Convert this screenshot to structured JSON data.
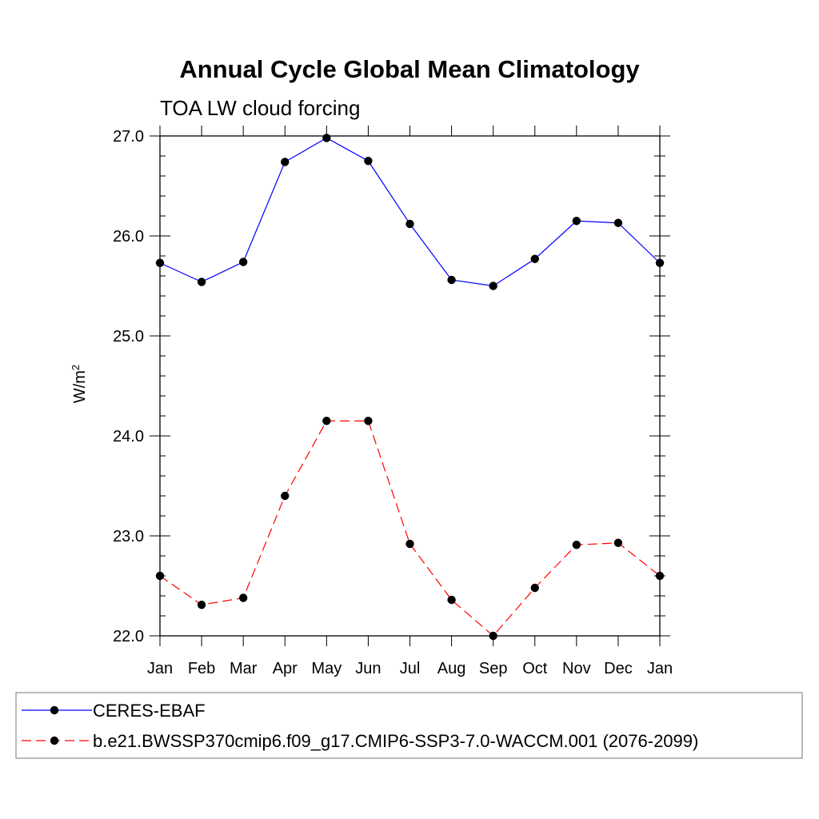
{
  "chart_data": {
    "type": "line",
    "title": "Annual Cycle Global Mean Climatology",
    "subtitle": "TOA LW cloud forcing",
    "ylabel": "W/m",
    "ylabel_superscript": "2",
    "xlabel": "",
    "categories": [
      "Jan",
      "Feb",
      "Mar",
      "Apr",
      "May",
      "Jun",
      "Jul",
      "Aug",
      "Sep",
      "Oct",
      "Nov",
      "Dec",
      "Jan"
    ],
    "ylim": [
      22.0,
      27.0
    ],
    "yticks": [
      22.0,
      23.0,
      24.0,
      25.0,
      26.0,
      27.0
    ],
    "ytick_labels": [
      "22.0",
      "23.0",
      "24.0",
      "25.0",
      "26.0",
      "27.0"
    ],
    "series": [
      {
        "name": "CERES-EBAF",
        "color": "#0000ff",
        "dash": "solid",
        "values": [
          25.73,
          25.54,
          25.74,
          26.74,
          26.98,
          26.75,
          26.12,
          25.56,
          25.5,
          25.77,
          26.15,
          26.13,
          25.73
        ]
      },
      {
        "name": "b.e21.BWSSP370cmip6.f09_g17.CMIP6-SSP3-7.0-WACCM.001 (2076-2099)",
        "color": "#ff0000",
        "dash": "dashed",
        "values": [
          22.6,
          22.31,
          22.38,
          23.4,
          24.15,
          24.15,
          22.92,
          22.36,
          22.0,
          22.48,
          22.91,
          22.93,
          22.6
        ]
      }
    ],
    "legend": "bottom"
  }
}
